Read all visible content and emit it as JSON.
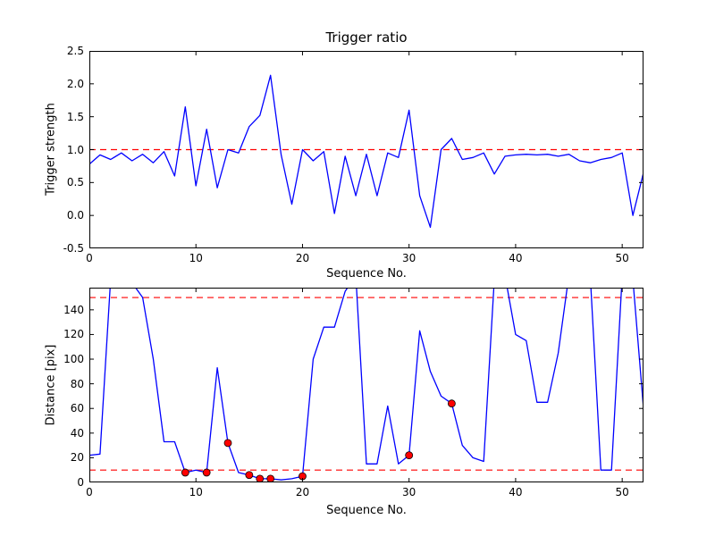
{
  "figure": {
    "background": "#ffffff",
    "axis_color": "#000000"
  },
  "chart_data": [
    {
      "type": "line",
      "title": "Trigger ratio",
      "xlabel": "Sequence No.",
      "ylabel": "Trigger strength",
      "xlim": [
        0,
        52
      ],
      "ylim": [
        -0.5,
        2.5
      ],
      "xticks": [
        0,
        10,
        20,
        30,
        40,
        50
      ],
      "xtick_labels": [
        "0",
        "10",
        "20",
        "30",
        "40",
        "50"
      ],
      "yticks": [
        -0.5,
        0.0,
        0.5,
        1.0,
        1.5,
        2.0,
        2.5
      ],
      "ytick_labels": [
        "-0.5",
        "0.0",
        "0.5",
        "1.0",
        "1.5",
        "2.0",
        "2.5"
      ],
      "grid": false,
      "legend_position": "none",
      "line_color": "#0000ff",
      "thresholds": [
        {
          "y": 1.0,
          "color": "#ff0000",
          "style": "dashed"
        }
      ],
      "x": [
        0,
        1,
        2,
        3,
        4,
        5,
        6,
        7,
        8,
        9,
        10,
        11,
        12,
        13,
        14,
        15,
        16,
        17,
        18,
        19,
        20,
        21,
        22,
        23,
        24,
        25,
        26,
        27,
        28,
        29,
        30,
        31,
        32,
        33,
        34,
        35,
        36,
        37,
        38,
        39,
        40,
        41,
        42,
        43,
        44,
        45,
        46,
        47,
        48,
        49,
        50,
        51,
        52
      ],
      "y": [
        0.78,
        0.92,
        0.85,
        0.95,
        0.83,
        0.93,
        0.8,
        0.97,
        0.6,
        1.65,
        0.45,
        1.31,
        0.42,
        1.0,
        0.95,
        1.35,
        1.52,
        2.13,
        0.92,
        0.17,
        1.0,
        0.83,
        0.97,
        0.03,
        0.9,
        0.3,
        0.93,
        0.3,
        0.95,
        0.88,
        1.6,
        0.3,
        -0.18,
        1.0,
        1.17,
        0.85,
        0.88,
        0.95,
        0.63,
        0.9,
        0.92,
        0.93,
        0.92,
        0.93,
        0.9,
        0.93,
        0.83,
        0.8,
        0.85,
        0.88,
        0.95,
        0.0,
        0.65
      ]
    },
    {
      "type": "line",
      "title": "",
      "xlabel": "Sequence No.",
      "ylabel": "Distance [pix]",
      "xlim": [
        0,
        52
      ],
      "ylim": [
        0,
        158
      ],
      "xticks": [
        0,
        10,
        20,
        30,
        40,
        50
      ],
      "xtick_labels": [
        "0",
        "10",
        "20",
        "30",
        "40",
        "50"
      ],
      "yticks": [
        0,
        20,
        40,
        60,
        80,
        100,
        120,
        140
      ],
      "ytick_labels": [
        "0",
        "20",
        "40",
        "60",
        "80",
        "100",
        "120",
        "140"
      ],
      "grid": false,
      "legend_position": "none",
      "line_color": "#0000ff",
      "thresholds": [
        {
          "y": 150,
          "color": "#ff0000",
          "style": "dashed"
        },
        {
          "y": 10,
          "color": "#ff0000",
          "style": "dashed"
        }
      ],
      "x": [
        0,
        1,
        2,
        3,
        4,
        5,
        6,
        7,
        8,
        9,
        10,
        11,
        12,
        13,
        14,
        15,
        16,
        17,
        18,
        19,
        20,
        21,
        22,
        23,
        24,
        25,
        26,
        27,
        28,
        29,
        30,
        31,
        32,
        33,
        34,
        35,
        36,
        37,
        38,
        39,
        40,
        41,
        42,
        43,
        44,
        45,
        46,
        47,
        48,
        49,
        50,
        51,
        52
      ],
      "y": [
        22,
        23,
        165,
        168,
        162,
        150,
        100,
        33,
        33,
        8,
        10,
        8,
        93,
        32,
        8,
        6,
        3,
        3,
        2,
        3,
        5,
        100,
        126,
        126,
        155,
        168,
        15,
        15,
        62,
        15,
        22,
        123,
        90,
        70,
        64,
        30,
        20,
        17,
        165,
        168,
        120,
        115,
        65,
        65,
        105,
        168,
        165,
        168,
        10,
        10,
        168,
        165,
        60
      ],
      "markers": {
        "color": "#ff0000",
        "edge_color": "#000000",
        "points": [
          [
            9,
            8
          ],
          [
            11,
            8
          ],
          [
            13,
            32
          ],
          [
            15,
            6
          ],
          [
            16,
            3
          ],
          [
            17,
            3
          ],
          [
            20,
            5
          ],
          [
            30,
            22
          ],
          [
            34,
            64
          ]
        ]
      }
    }
  ]
}
